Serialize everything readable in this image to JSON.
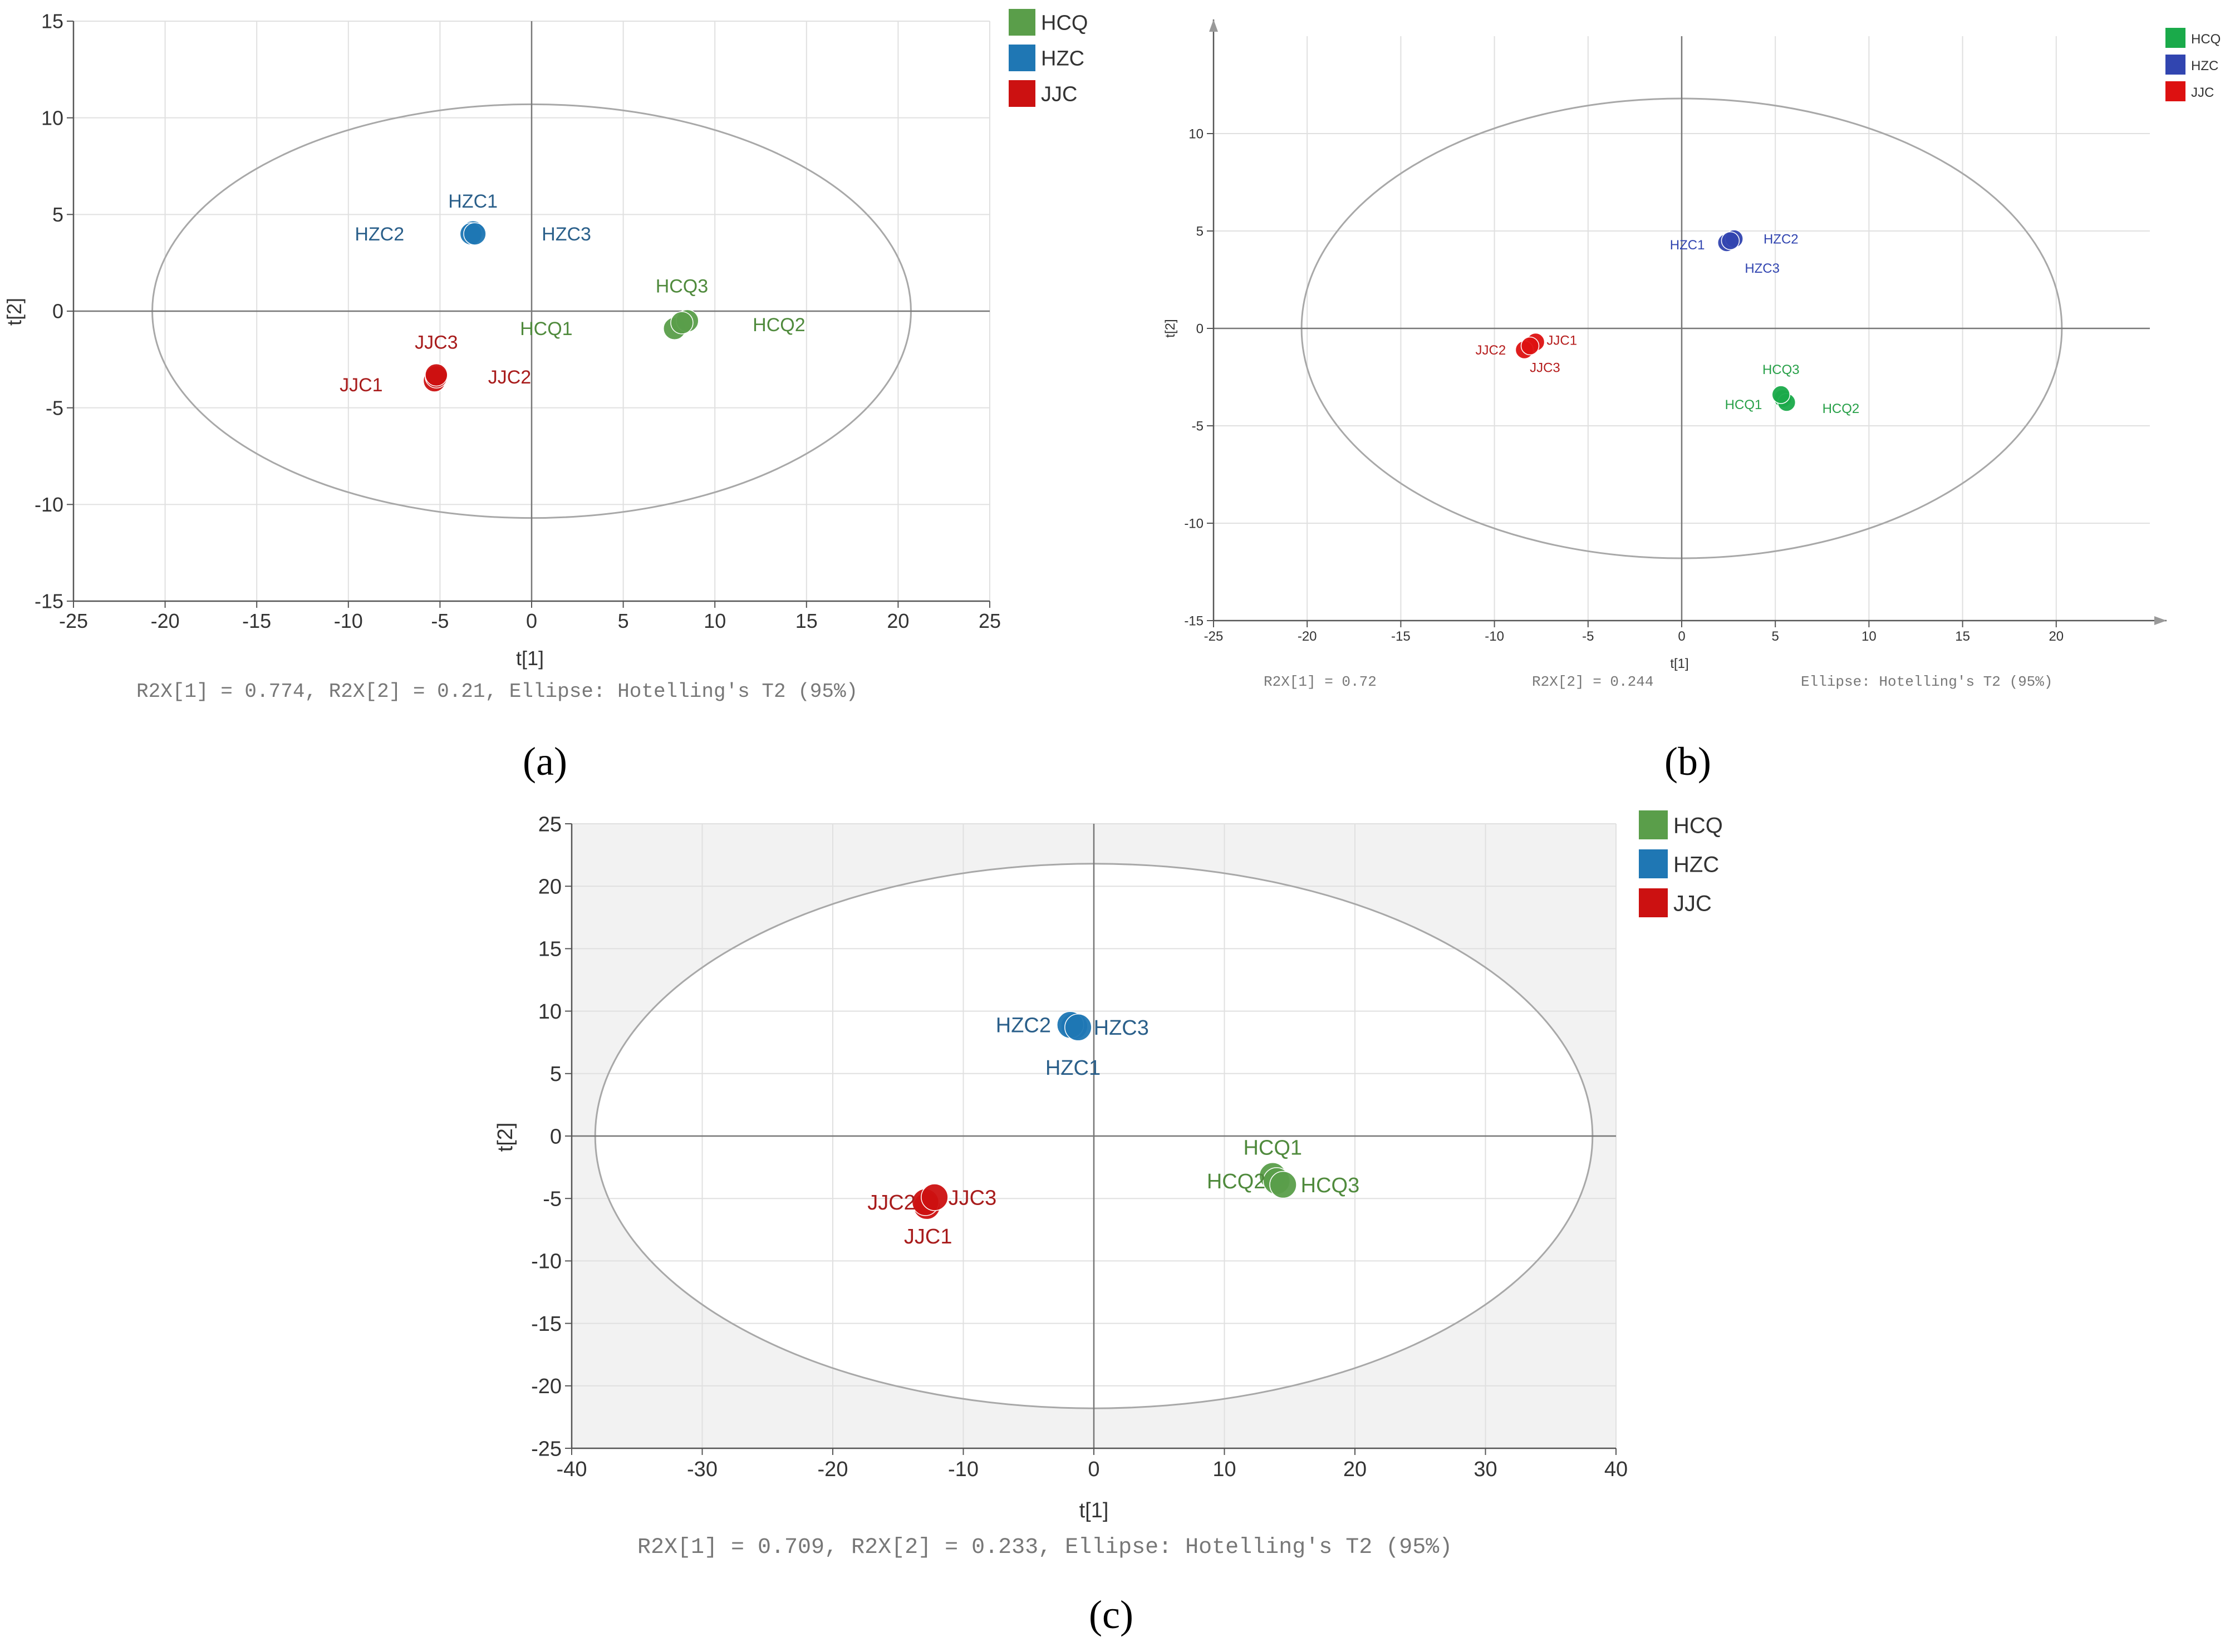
{
  "figure": {
    "panel_labels": [
      "(a)",
      "(b)",
      "(c)"
    ]
  },
  "chart_data": [
    {
      "panel": "(a)",
      "type": "scatter",
      "xlabel": "t[1]",
      "ylabel": "t[2]",
      "xlim": [
        -25,
        25
      ],
      "ylim": [
        -15,
        15
      ],
      "xticks": [
        -25,
        -20,
        -15,
        -10,
        -5,
        0,
        5,
        10,
        15,
        20,
        25
      ],
      "yticks": [
        -15,
        -10,
        -5,
        0,
        5,
        10,
        15
      ],
      "grid": true,
      "footer": "R2X[1] = 0.774, R2X[2] = 0.21, Ellipse: Hotelling's T2 (95%)",
      "ellipse": {
        "cx": 0,
        "cy": 0,
        "rx": 20.7,
        "ry": 10.7
      },
      "legend_position": "top-right",
      "series": [
        {
          "name": "HCQ",
          "color": "#5a9e4a",
          "label_color": "#4f8a3c",
          "points": [
            {
              "label": "HCQ1",
              "x": 7.8,
              "y": -0.9,
              "label_dx": -7,
              "label_dy": 0
            },
            {
              "label": "HCQ2",
              "x": 8.5,
              "y": -0.5,
              "label_dx": 5,
              "label_dy": -0.2
            },
            {
              "label": "HCQ3",
              "x": 8.2,
              "y": -0.6,
              "label_dx": 0,
              "label_dy": 1.9
            }
          ]
        },
        {
          "name": "HZC",
          "color": "#1f77b4",
          "label_color": "#2a5f8a",
          "points": [
            {
              "label": "HZC1",
              "x": -3.2,
              "y": 4.1,
              "label_dx": 0,
              "label_dy": 1.6
            },
            {
              "label": "HZC2",
              "x": -3.3,
              "y": 4.0,
              "label_dx": -5,
              "label_dy": 0
            },
            {
              "label": "HZC3",
              "x": -3.1,
              "y": 4.0,
              "label_dx": 5,
              "label_dy": 0
            }
          ]
        },
        {
          "name": "JJC",
          "color": "#cc1111",
          "label_color": "#a81c1c",
          "points": [
            {
              "label": "JJC1",
              "x": -5.3,
              "y": -3.6,
              "label_dx": -4,
              "label_dy": -0.2
            },
            {
              "label": "JJC2",
              "x": -5.2,
              "y": -3.4,
              "label_dx": 4,
              "label_dy": 0
            },
            {
              "label": "JJC3",
              "x": -5.2,
              "y": -3.3,
              "label_dx": 0,
              "label_dy": 1.7
            }
          ]
        }
      ]
    },
    {
      "panel": "(b)",
      "type": "scatter",
      "xlabel": "t[1]",
      "ylabel": "t[2]",
      "xlim": [
        -25,
        25
      ],
      "ylim": [
        -15,
        15
      ],
      "xticks": [
        -25,
        -20,
        -15,
        -10,
        -5,
        0,
        5,
        10,
        15,
        20
      ],
      "yticks": [
        -15,
        -10,
        -5,
        0,
        5,
        10
      ],
      "grid": true,
      "footer_items": [
        "R2X[1] = 0.72",
        "R2X[2] = 0.244",
        "Ellipse: Hotelling's T2 (95%)"
      ],
      "ellipse": {
        "cx": 0,
        "cy": 0,
        "rx": 20.3,
        "ry": 11.8
      },
      "legend_position": "top-right",
      "series": [
        {
          "name": "HCQ",
          "color": "#1aaa4a",
          "label_color": "#27a048",
          "points": [
            {
              "label": "HCQ1",
              "x": 5.4,
              "y": -3.6,
              "label_dx": -2.1,
              "label_dy": -0.3
            },
            {
              "label": "HCQ2",
              "x": 5.6,
              "y": -3.8,
              "label_dx": 2.9,
              "label_dy": -0.3
            },
            {
              "label": "HCQ3",
              "x": 5.3,
              "y": -3.4,
              "label_dx": 0,
              "label_dy": 1.3
            }
          ]
        },
        {
          "name": "HZC",
          "color": "#3145b0",
          "label_color": "#3145b0",
          "points": [
            {
              "label": "HZC1",
              "x": 2.4,
              "y": 4.4,
              "label_dx": -2.1,
              "label_dy": -0.1
            },
            {
              "label": "HZC2",
              "x": 2.8,
              "y": 4.6,
              "label_dx": 2.5,
              "label_dy": 0
            },
            {
              "label": "HZC3",
              "x": 2.6,
              "y": 4.5,
              "label_dx": 1.7,
              "label_dy": -1.4
            }
          ]
        },
        {
          "name": "JJC",
          "color": "#dd1111",
          "label_color": "#b51c1c",
          "points": [
            {
              "label": "JJC1",
              "x": -7.8,
              "y": -0.7,
              "label_dx": 1.4,
              "label_dy": 0.1
            },
            {
              "label": "JJC2",
              "x": -8.4,
              "y": -1.1,
              "label_dx": -1.8,
              "label_dy": 0
            },
            {
              "label": "JJC3",
              "x": -8.1,
              "y": -0.9,
              "label_dx": 0.8,
              "label_dy": -1.1
            }
          ]
        }
      ]
    },
    {
      "panel": "(c)",
      "type": "scatter",
      "xlabel": "t[1]",
      "ylabel": "t[2]",
      "xlim": [
        -40,
        40
      ],
      "ylim": [
        -25,
        25
      ],
      "xticks": [
        -40,
        -30,
        -20,
        -10,
        0,
        10,
        20,
        30,
        40
      ],
      "yticks": [
        -25,
        -20,
        -15,
        -10,
        -5,
        0,
        5,
        10,
        15,
        20,
        25
      ],
      "grid": true,
      "footer": "R2X[1] = 0.709, R2X[2] = 0.233, Ellipse: Hotelling's T2 (95%)",
      "ellipse": {
        "cx": 0,
        "cy": 0,
        "rx": 38.2,
        "ry": 21.8
      },
      "legend_position": "top-right",
      "series": [
        {
          "name": "HCQ",
          "color": "#5a9e4a",
          "label_color": "#4f8a3c",
          "points": [
            {
              "label": "HCQ1",
              "x": 13.7,
              "y": -3.2,
              "label_dx": 0,
              "label_dy": 2.3
            },
            {
              "label": "HCQ2",
              "x": 14.0,
              "y": -3.6,
              "label_dx": -3.1,
              "label_dy": 0
            },
            {
              "label": "HCQ3",
              "x": 14.5,
              "y": -3.9,
              "label_dx": 3.6,
              "label_dy": 0
            }
          ]
        },
        {
          "name": "HZC",
          "color": "#1f77b4",
          "label_color": "#2a5f8a",
          "points": [
            {
              "label": "HZC1",
              "x": -1.5,
              "y": 8.8,
              "label_dx": -0.1,
              "label_dy": -3.3
            },
            {
              "label": "HZC2",
              "x": -1.8,
              "y": 8.9,
              "label_dx": -3.6,
              "label_dy": 0
            },
            {
              "label": "HZC3",
              "x": -1.2,
              "y": 8.7,
              "label_dx": 3.3,
              "label_dy": 0
            }
          ]
        },
        {
          "name": "JJC",
          "color": "#cc1111",
          "label_color": "#a81c1c",
          "points": [
            {
              "label": "JJC1",
              "x": -12.8,
              "y": -5.6,
              "label_dx": 0.1,
              "label_dy": -2.4
            },
            {
              "label": "JJC2",
              "x": -12.9,
              "y": -5.3,
              "label_dx": -2.6,
              "label_dy": 0
            },
            {
              "label": "JJC3",
              "x": -12.2,
              "y": -4.9,
              "label_dx": 2.9,
              "label_dy": 0
            }
          ]
        }
      ]
    }
  ]
}
